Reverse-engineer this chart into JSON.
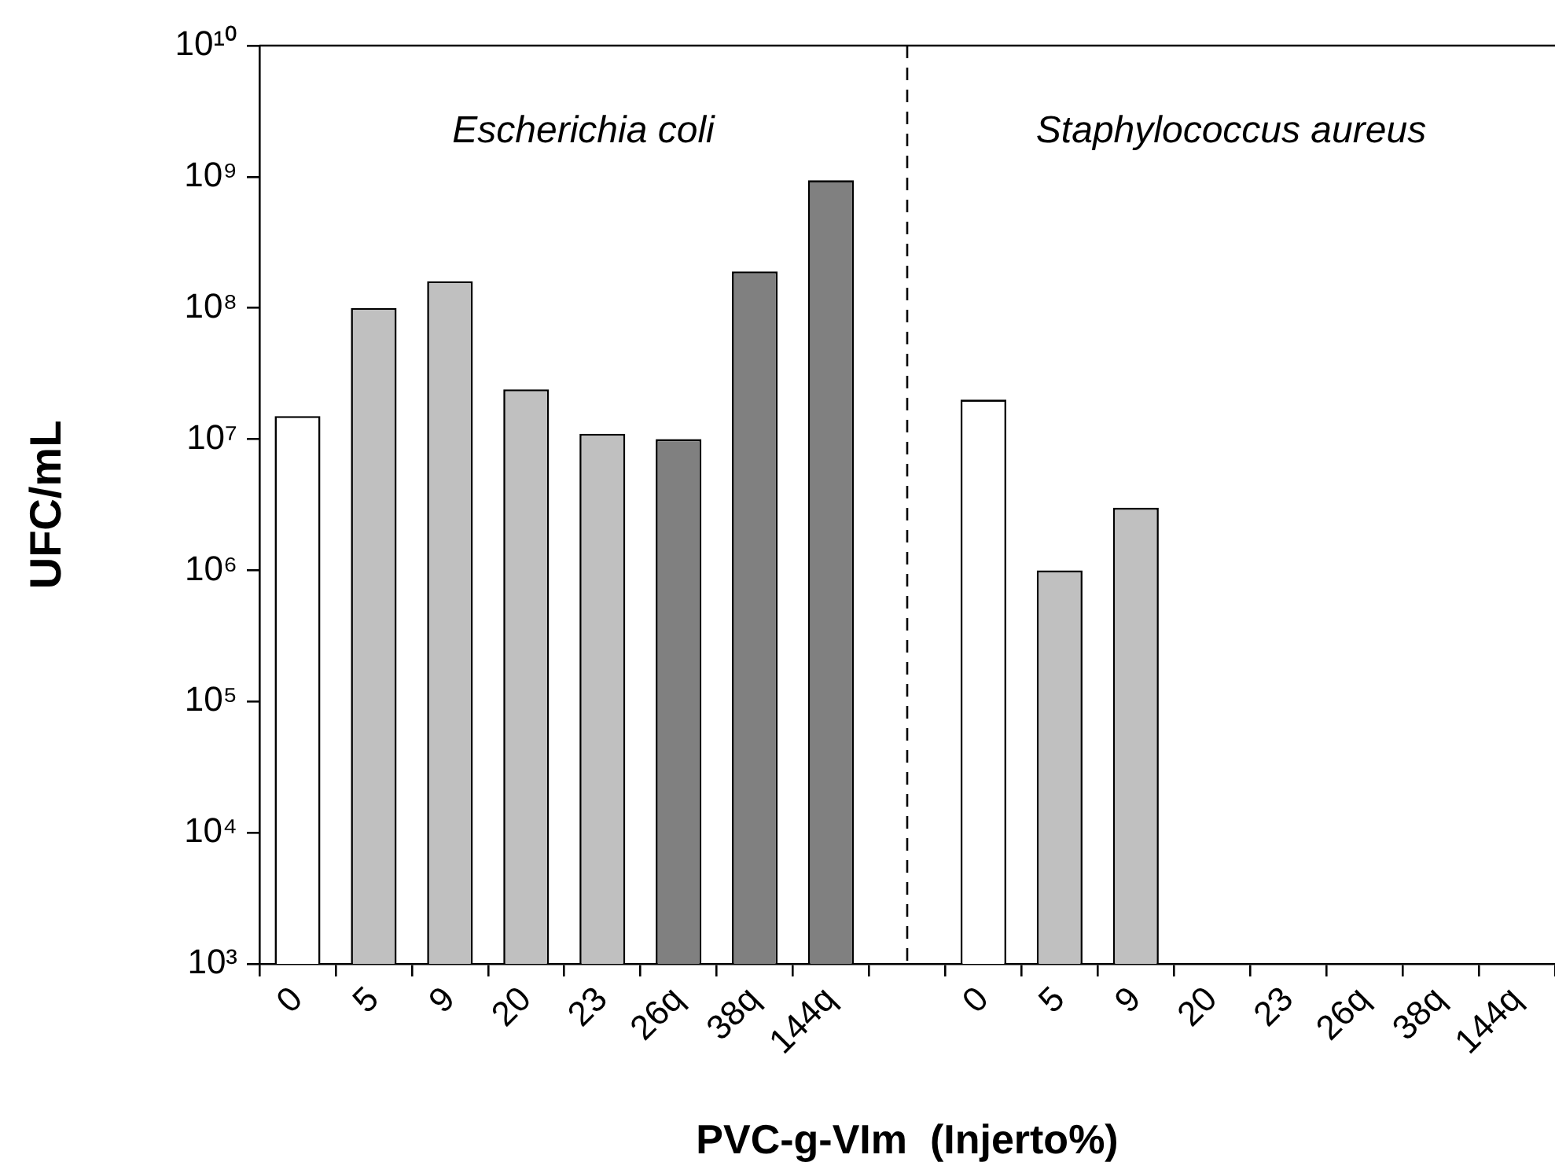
{
  "chart_data": {
    "type": "bar",
    "xlabel": "PVC-g-VIm  (Injerto%)",
    "ylabel": "UFC/mL",
    "log": "y",
    "categories": [
      "0",
      "5",
      "9",
      "20",
      "23",
      "26q",
      "38q",
      "144q",
      null,
      "0",
      "5",
      "9",
      "20",
      "23",
      "26q",
      "38q",
      "144q"
    ],
    "values": [
      15000000.0,
      100000000.0,
      160000000.0,
      24000000.0,
      11000000.0,
      10000000.0,
      190000000.0,
      940000000.0,
      null,
      20000000.0,
      1000000.0,
      3000000.0,
      null,
      null,
      null,
      null,
      null
    ],
    "colors": [
      "#ffffff",
      "#c0c0c0",
      "#c0c0c0",
      "#c0c0c0",
      "#c0c0c0",
      "#808080",
      "#808080",
      "#808080",
      "#ffffff",
      "#ffffff",
      "#c0c0c0",
      "#c0c0c0",
      "#c0c0c0",
      "#c0c0c0",
      "#808080",
      "#808080",
      "#808080"
    ],
    "ylim": [
      1000,
      10000000000
    ],
    "yticks": [
      {
        "value": 1000,
        "label": "10³"
      },
      {
        "value": 10000,
        "label": "10⁴"
      },
      {
        "value": 100000,
        "label": "10⁵"
      },
      {
        "value": 1000000,
        "label": "10⁶"
      },
      {
        "value": 10000000,
        "label": "10⁷"
      },
      {
        "value": 100000000,
        "label": "10⁸"
      },
      {
        "value": 1000000000,
        "label": "10⁹"
      },
      {
        "value": 10000000000,
        "label": "10¹⁰"
      }
    ],
    "annotations": [
      "Escherichia coli",
      "Staphylococcus aureus"
    ],
    "grid": false,
    "legend": false
  }
}
